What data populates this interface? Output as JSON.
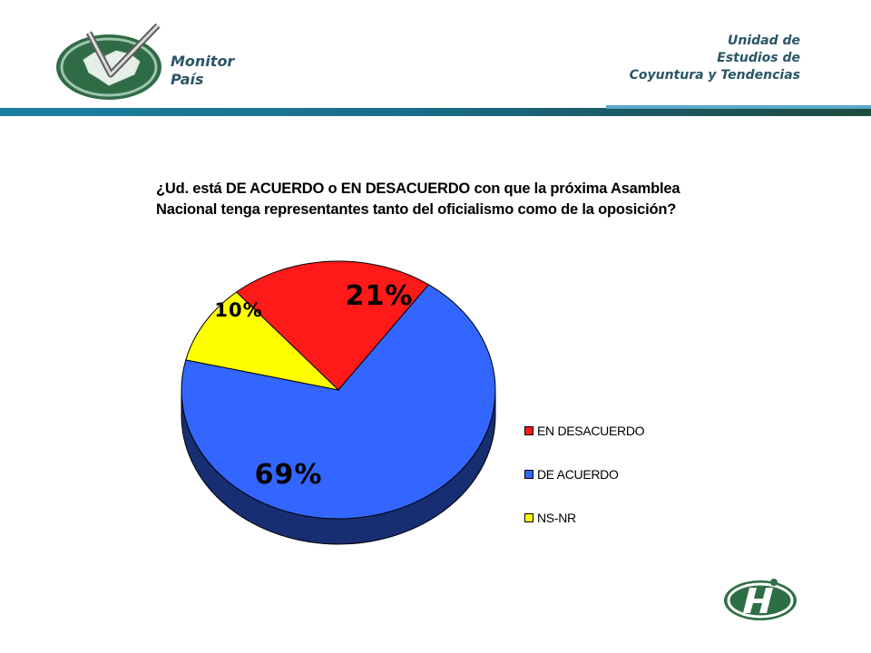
{
  "header": {
    "brand_line1": "Monitor",
    "brand_line2": "País",
    "unit_line1": "Unidad de",
    "unit_line2": "Estudios de",
    "unit_line3": "Coyuntura y Tendencias"
  },
  "colors": {
    "accent": "#1d7fa0",
    "brand_text": "#2a5566",
    "logo_green": "#2e6e44"
  },
  "chart_data": {
    "type": "pie",
    "title_line1": "¿Ud. está DE ACUERDO o EN DESACUERDO  con que la próxima Asamblea",
    "title_line2": "Nacional tenga representantes tanto del oficialismo como de la oposición?",
    "slices": [
      {
        "name": "EN DESACUERDO",
        "value": 21,
        "label": "21%",
        "color": "#ff1a1a"
      },
      {
        "name": "DE ACUERDO",
        "value": 69,
        "label": "69%",
        "color": "#3366ff"
      },
      {
        "name": "NS-NR",
        "value": 10,
        "label": "10%",
        "color": "#ffff00"
      }
    ],
    "legend_position": "right",
    "three_d": true
  }
}
